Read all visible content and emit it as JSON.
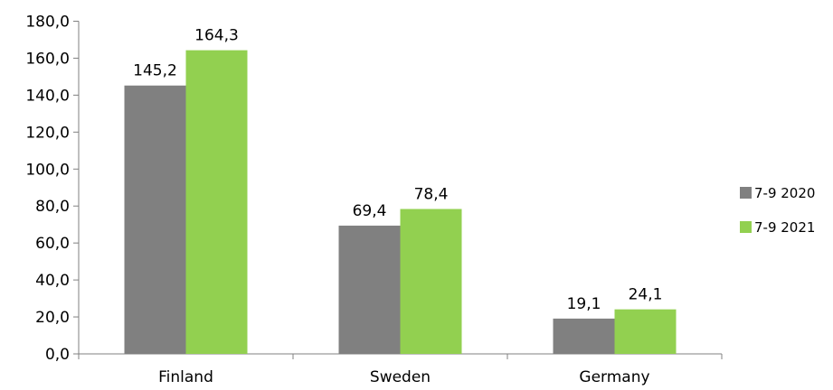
{
  "chart_data": {
    "type": "bar",
    "categories": [
      "Finland",
      "Sweden",
      "Germany"
    ],
    "series": [
      {
        "name": "7-9 2020",
        "values": [
          145.2,
          69.4,
          19.1
        ],
        "labels": [
          "145,2",
          "69,4",
          "19,1"
        ],
        "color": "#808080"
      },
      {
        "name": "7-9 2021",
        "values": [
          164.3,
          78.4,
          24.1
        ],
        "labels": [
          "164,3",
          "78,4",
          "24,1"
        ],
        "color": "#92D050"
      }
    ],
    "ylim": [
      0,
      180
    ],
    "yticks": [
      0,
      20,
      40,
      60,
      80,
      100,
      120,
      140,
      160,
      180
    ],
    "ytick_labels": [
      "0,0",
      "20,0",
      "40,0",
      "60,0",
      "80,0",
      "100,0",
      "120,0",
      "140,0",
      "160,0",
      "180,0"
    ],
    "grid": false,
    "legend_position": "right"
  }
}
